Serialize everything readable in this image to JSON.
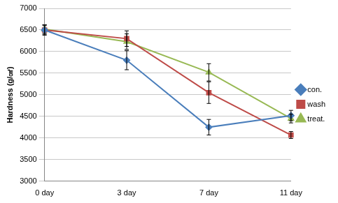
{
  "chart_data": {
    "type": "line",
    "y_label": "Hardness (g/㎠)",
    "categories": [
      "0 day",
      "3 day",
      "7 day",
      "11 day"
    ],
    "series": [
      {
        "name": "con.",
        "color": "#4a7ebb",
        "marker": "diamond",
        "values": [
          6500,
          5800,
          4250,
          4520
        ],
        "errors": [
          120,
          220,
          180,
          120
        ]
      },
      {
        "name": "wash",
        "color": "#be4b48",
        "marker": "square",
        "values": [
          6500,
          6300,
          5050,
          4070
        ],
        "errors": [
          100,
          180,
          250,
          80
        ]
      },
      {
        "name": "treat.",
        "color": "#98b954",
        "marker": "triangle",
        "values": [
          6520,
          6230,
          5520,
          4450
        ],
        "errors": [
          100,
          180,
          200,
          100
        ]
      }
    ],
    "ylim": [
      3000,
      7000
    ],
    "yticks": [
      3000,
      3500,
      4000,
      4500,
      5000,
      5500,
      6000,
      6500,
      7000
    ],
    "grid": true,
    "legend": "right"
  }
}
